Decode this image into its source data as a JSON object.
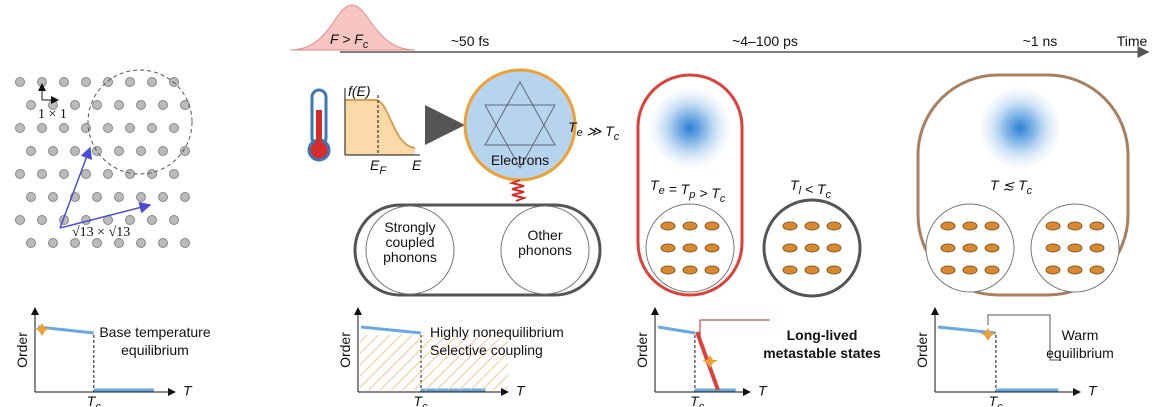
{
  "timeline": {
    "pulse": [
      [
        "F",
        ""
      ],
      [
        " > F",
        "c"
      ]
    ],
    "times": [
      "~50 fs",
      "~4–100 ps",
      "~1 ns"
    ],
    "axis_label": "Time"
  },
  "lattice": {
    "cell_small": "1 × 1",
    "cell_large": "√13 × √13"
  },
  "stage1": {
    "distribution_label": "f(E)",
    "fermi": [
      [
        "E",
        "F"
      ]
    ],
    "energy": "E",
    "electrons": "Electrons",
    "temperature": [
      [
        "T",
        "e"
      ],
      [
        " ≫ T",
        "c"
      ]
    ],
    "phonons_coupled": [
      "Strongly",
      "coupled",
      "phonons"
    ],
    "phonons_other": [
      "Other",
      "phonons"
    ]
  },
  "stage2": {
    "temperature_electrons": [
      [
        "T",
        "e"
      ],
      [
        " = T",
        "p"
      ],
      [
        " > T",
        "c"
      ]
    ],
    "temperature_lattice": [
      [
        "T",
        "l"
      ],
      [
        " < T",
        "c"
      ]
    ]
  },
  "stage3": {
    "temperature": [
      [
        "T",
        ""
      ],
      [
        " ≲ T",
        "c"
      ]
    ]
  },
  "plots": {
    "y_label": "Order",
    "x_label": "T",
    "tc": [
      [
        "T",
        "c"
      ]
    ]
  },
  "captions": {
    "base": [
      "Base temperature",
      "equilibrium"
    ],
    "noneq": [
      "Highly nonequilibrium"
    ],
    "selective": "Selective coupling",
    "metastable": [
      "Long-lived",
      "metastable states"
    ],
    "warm": [
      "Warm",
      "equilibrium"
    ]
  }
}
